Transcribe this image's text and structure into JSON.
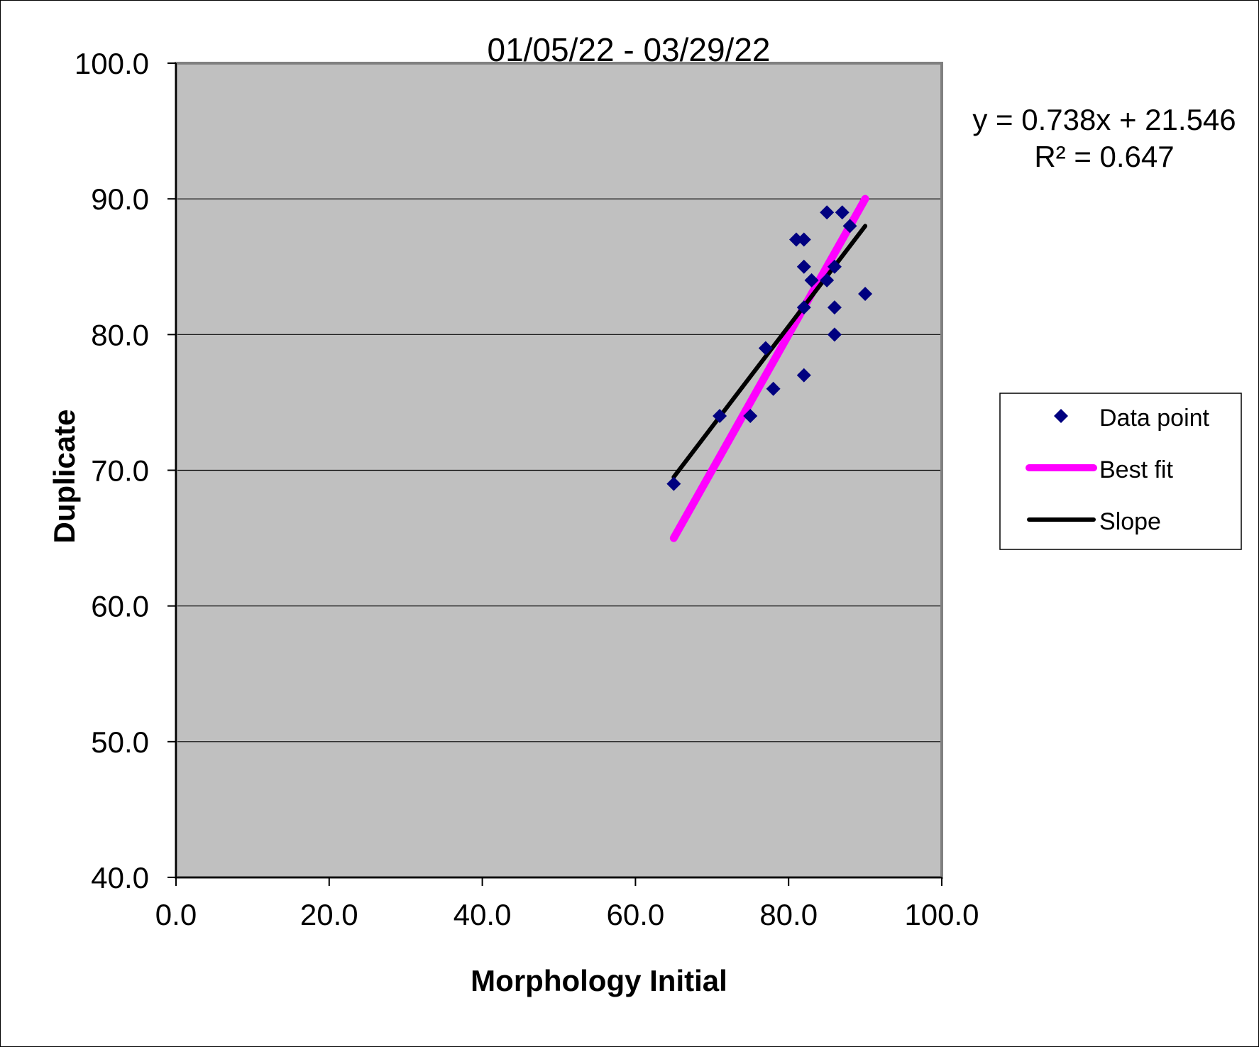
{
  "chart_data": {
    "type": "scatter",
    "title": "01/05/22 - 03/29/22",
    "xlabel": "Morphology Initial",
    "ylabel": "Duplicate",
    "xlim": [
      0,
      100
    ],
    "ylim": [
      40,
      100
    ],
    "x_ticks": [
      "0.0",
      "20.0",
      "40.0",
      "60.0",
      "80.0",
      "100.0"
    ],
    "y_ticks": [
      "40.0",
      "50.0",
      "60.0",
      "70.0",
      "80.0",
      "90.0",
      "100.0"
    ],
    "grid": "horizontal",
    "legend_position": "right",
    "equation": "y = 0.738x + 21.546",
    "r_squared": "R² = 0.647",
    "series": [
      {
        "name": "Data point",
        "kind": "marker",
        "color": "#000080",
        "points": [
          [
            65,
            69
          ],
          [
            71,
            74
          ],
          [
            75,
            74
          ],
          [
            77,
            79
          ],
          [
            78,
            76
          ],
          [
            81,
            87
          ],
          [
            82,
            87
          ],
          [
            82,
            85
          ],
          [
            82,
            82
          ],
          [
            82,
            77
          ],
          [
            83,
            84
          ],
          [
            85,
            89
          ],
          [
            85,
            84
          ],
          [
            86,
            85
          ],
          [
            86,
            82
          ],
          [
            86,
            80
          ],
          [
            87,
            89
          ],
          [
            88,
            88
          ],
          [
            90,
            83
          ]
        ]
      },
      {
        "name": "Best fit",
        "kind": "line",
        "color": "#ff00ff",
        "points": [
          [
            65,
            65
          ],
          [
            90,
            90
          ]
        ]
      },
      {
        "name": "Slope",
        "kind": "line",
        "color": "#000000",
        "points": [
          [
            65,
            69.5
          ],
          [
            90,
            88
          ]
        ]
      }
    ],
    "colors": {
      "plot_background": "#c0c0c0",
      "gridline": "#000000"
    }
  }
}
